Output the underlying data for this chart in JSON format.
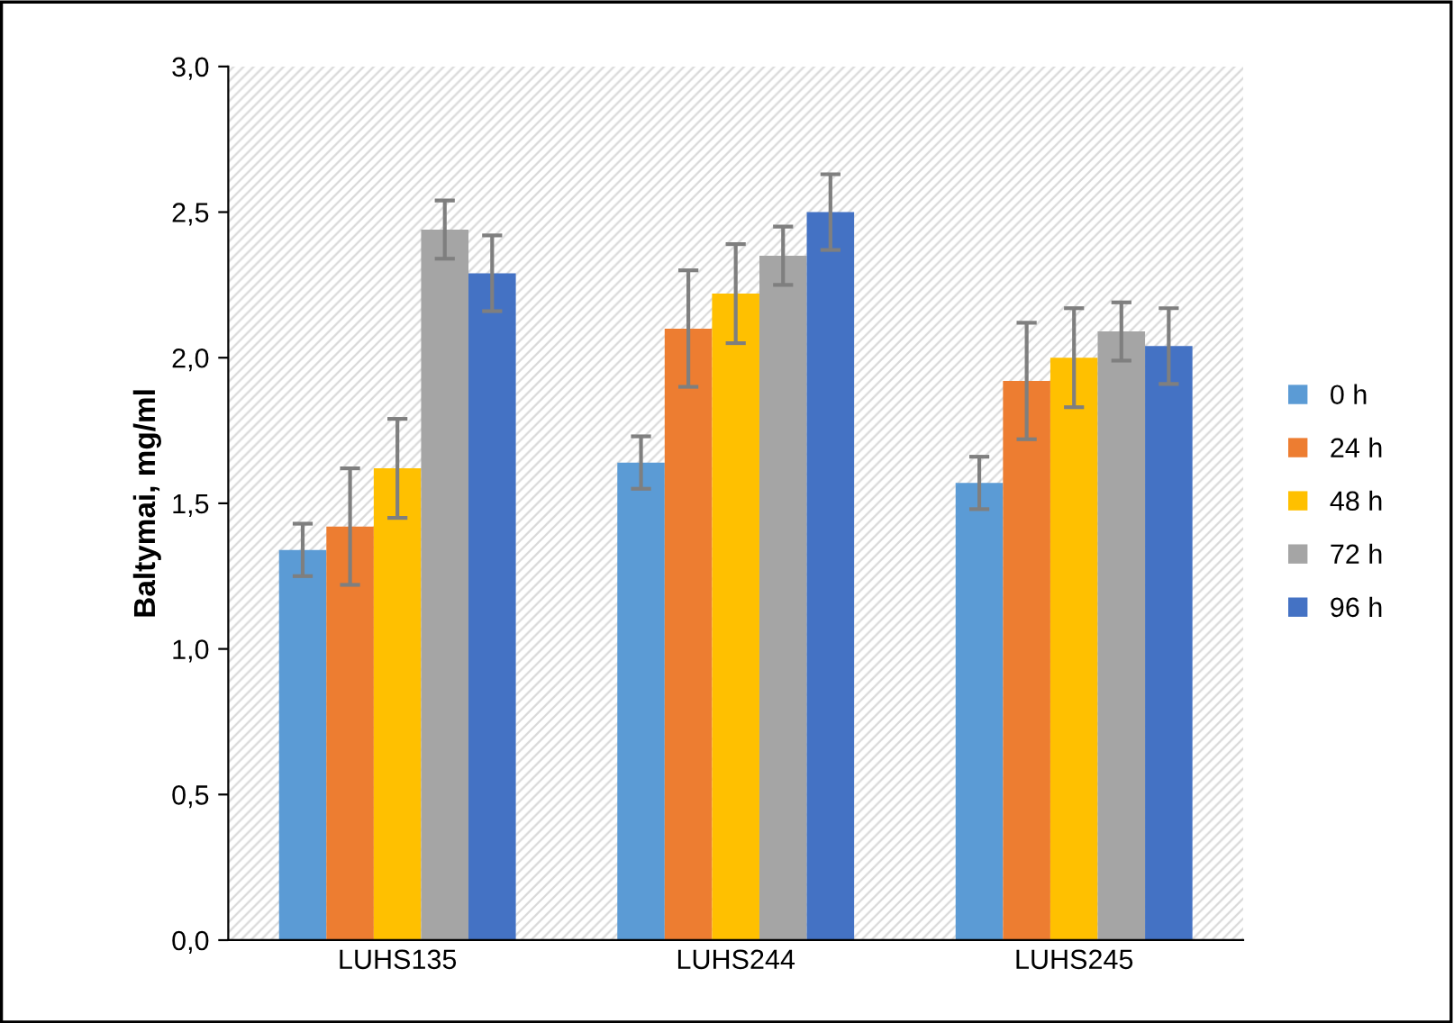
{
  "chart_data": {
    "type": "bar",
    "ylabel": "Baltymai, mg/ml",
    "categories": [
      "LUHS135",
      "LUHS244",
      "LUHS245"
    ],
    "series": [
      {
        "name": "0 h",
        "color": "#5b9bd5",
        "values": [
          1.34,
          1.64,
          1.57
        ],
        "errors": [
          0.09,
          0.09,
          0.09
        ]
      },
      {
        "name": "24 h",
        "color": "#ed7d31",
        "values": [
          1.42,
          2.1,
          1.92
        ],
        "errors": [
          0.2,
          0.2,
          0.2
        ]
      },
      {
        "name": "48 h",
        "color": "#ffc000",
        "values": [
          1.62,
          2.22,
          2.0
        ],
        "errors": [
          0.17,
          0.17,
          0.17
        ]
      },
      {
        "name": "72 h",
        "color": "#a5a5a5",
        "values": [
          2.44,
          2.35,
          2.09
        ],
        "errors": [
          0.1,
          0.1,
          0.1
        ]
      },
      {
        "name": "96 h",
        "color": "#4472c4",
        "values": [
          2.29,
          2.5,
          2.04
        ],
        "errors": [
          0.13,
          0.13,
          0.13
        ]
      }
    ],
    "ylim": [
      0,
      3.0
    ],
    "yticks": [
      {
        "value": 0,
        "label": "0,0"
      },
      {
        "value": 0.5,
        "label": "0,5"
      },
      {
        "value": 1.0,
        "label": "1,0"
      },
      {
        "value": 1.5,
        "label": "1,5"
      },
      {
        "value": 2.0,
        "label": "2,0"
      },
      {
        "value": 2.5,
        "label": "2,5"
      },
      {
        "value": 3.0,
        "label": "3,0"
      }
    ],
    "grid": false,
    "legend": "right"
  }
}
